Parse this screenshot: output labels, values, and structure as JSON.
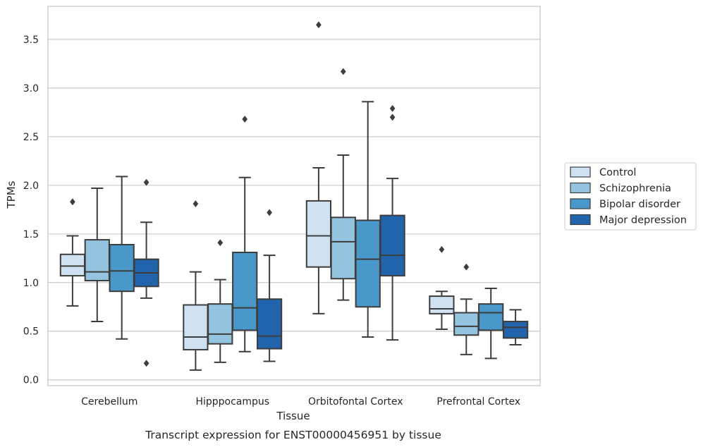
{
  "chart_data": {
    "type": "box",
    "caption": "Transcript expression for ENST00000456951 by tissue",
    "xlabel": "Tissue",
    "ylabel": "TPMs",
    "ylim": [
      -0.06,
      3.84
    ],
    "yticks": [
      0.0,
      0.5,
      1.0,
      1.5,
      2.0,
      2.5,
      3.0,
      3.5
    ],
    "ytick_labels": [
      "0.0",
      "0.5",
      "1.0",
      "1.5",
      "2.0",
      "2.5",
      "3.0",
      "3.5"
    ],
    "grid": true,
    "legend_position": "right",
    "categories": [
      "Cerebellum",
      "Hipppocampus",
      "Orbitofontal Cortex",
      "Prefrontal Cortex"
    ],
    "series": [
      {
        "name": "Control",
        "color": "#d0e1f2",
        "boxes": [
          {
            "whislo": 0.76,
            "q1": 1.07,
            "med": 1.17,
            "q3": 1.29,
            "whishi": 1.48,
            "fliers": [
              1.83
            ]
          },
          {
            "whislo": 0.1,
            "q1": 0.31,
            "med": 0.44,
            "q3": 0.77,
            "whishi": 1.11,
            "fliers": [
              1.81
            ]
          },
          {
            "whislo": 0.68,
            "q1": 1.16,
            "med": 1.48,
            "q3": 1.84,
            "whishi": 2.18,
            "fliers": [
              3.65
            ]
          },
          {
            "whislo": 0.52,
            "q1": 0.68,
            "med": 0.73,
            "q3": 0.86,
            "whishi": 0.91,
            "fliers": [
              1.34
            ]
          }
        ]
      },
      {
        "name": "Schizophrenia",
        "color": "#94c4df",
        "boxes": [
          {
            "whislo": 0.6,
            "q1": 1.02,
            "med": 1.11,
            "q3": 1.44,
            "whishi": 1.97,
            "fliers": []
          },
          {
            "whislo": 0.18,
            "q1": 0.37,
            "med": 0.47,
            "q3": 0.78,
            "whishi": 1.03,
            "fliers": [
              1.41
            ]
          },
          {
            "whislo": 0.82,
            "q1": 1.04,
            "med": 1.42,
            "q3": 1.67,
            "whishi": 2.31,
            "fliers": [
              3.17
            ]
          },
          {
            "whislo": 0.26,
            "q1": 0.46,
            "med": 0.55,
            "q3": 0.69,
            "whishi": 0.83,
            "fliers": [
              1.16
            ]
          }
        ]
      },
      {
        "name": "Bipolar disorder",
        "color": "#4a98c9",
        "boxes": [
          {
            "whislo": 0.42,
            "q1": 0.91,
            "med": 1.12,
            "q3": 1.39,
            "whishi": 2.09,
            "fliers": []
          },
          {
            "whislo": 0.29,
            "q1": 0.51,
            "med": 0.74,
            "q3": 1.31,
            "whishi": 2.08,
            "fliers": [
              2.68
            ]
          },
          {
            "whislo": 0.44,
            "q1": 0.75,
            "med": 1.24,
            "q3": 1.64,
            "whishi": 2.86,
            "fliers": []
          },
          {
            "whislo": 0.22,
            "q1": 0.51,
            "med": 0.69,
            "q3": 0.78,
            "whishi": 0.94,
            "fliers": []
          }
        ]
      },
      {
        "name": "Major depression",
        "color": "#2164ab",
        "boxes": [
          {
            "whislo": 0.84,
            "q1": 0.96,
            "med": 1.1,
            "q3": 1.24,
            "whishi": 1.62,
            "fliers": [
              2.03,
              0.17
            ]
          },
          {
            "whislo": 0.19,
            "q1": 0.32,
            "med": 0.45,
            "q3": 0.83,
            "whishi": 1.28,
            "fliers": [
              1.72
            ]
          },
          {
            "whislo": 0.41,
            "q1": 1.07,
            "med": 1.28,
            "q3": 1.69,
            "whishi": 2.07,
            "fliers": [
              2.7,
              2.79
            ]
          },
          {
            "whislo": 0.36,
            "q1": 0.43,
            "med": 0.54,
            "q3": 0.6,
            "whishi": 0.72,
            "fliers": []
          }
        ]
      }
    ],
    "colors": {
      "grid": "#cccccc",
      "frame": "#cccccc",
      "box_edge": "#3d3d3d",
      "text": "#262626"
    }
  }
}
